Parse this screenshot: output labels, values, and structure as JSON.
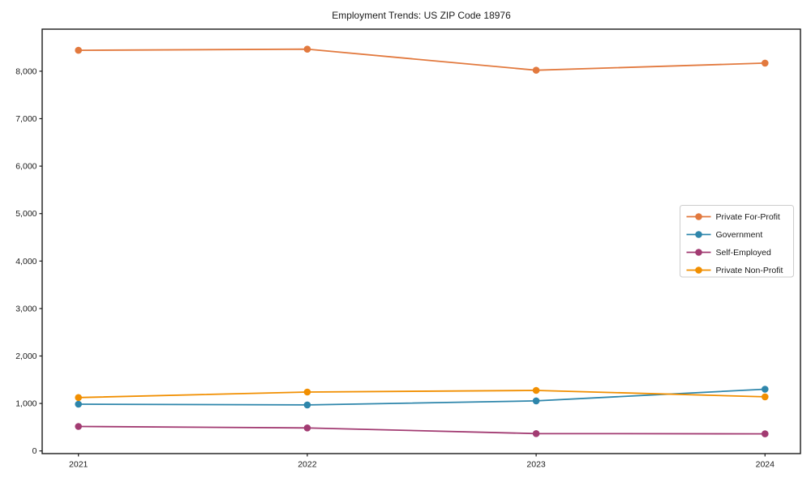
{
  "chart_data": {
    "type": "line",
    "title": "Employment Trends: US ZIP Code 18976",
    "categories": [
      "2021",
      "2022",
      "2023",
      "2024"
    ],
    "series": [
      {
        "name": "Private For-Profit",
        "color": "#E2793E",
        "values": [
          8440,
          8465,
          8020,
          8170
        ]
      },
      {
        "name": "Government",
        "color": "#2E86AB",
        "values": [
          985,
          970,
          1055,
          1300
        ]
      },
      {
        "name": "Self-Employed",
        "color": "#A23B72",
        "values": [
          515,
          485,
          365,
          360
        ]
      },
      {
        "name": "Private Non-Profit",
        "color": "#F18F01",
        "values": [
          1125,
          1240,
          1275,
          1140
        ]
      }
    ],
    "xlabel": "",
    "ylabel": "",
    "ylim": [
      -60,
      8880
    ],
    "yticks": [
      0,
      1000,
      2000,
      3000,
      4000,
      5000,
      6000,
      7000,
      8000
    ],
    "ytick_format": "comma",
    "grid": false,
    "legend_position": "right-middle",
    "marker": "circle",
    "colors": {
      "background": "#ffffff",
      "axis": "#1a1a1a",
      "text": "#1a1a1a",
      "legend_border": "#cccccc",
      "legend_background": "#ffffff"
    }
  }
}
